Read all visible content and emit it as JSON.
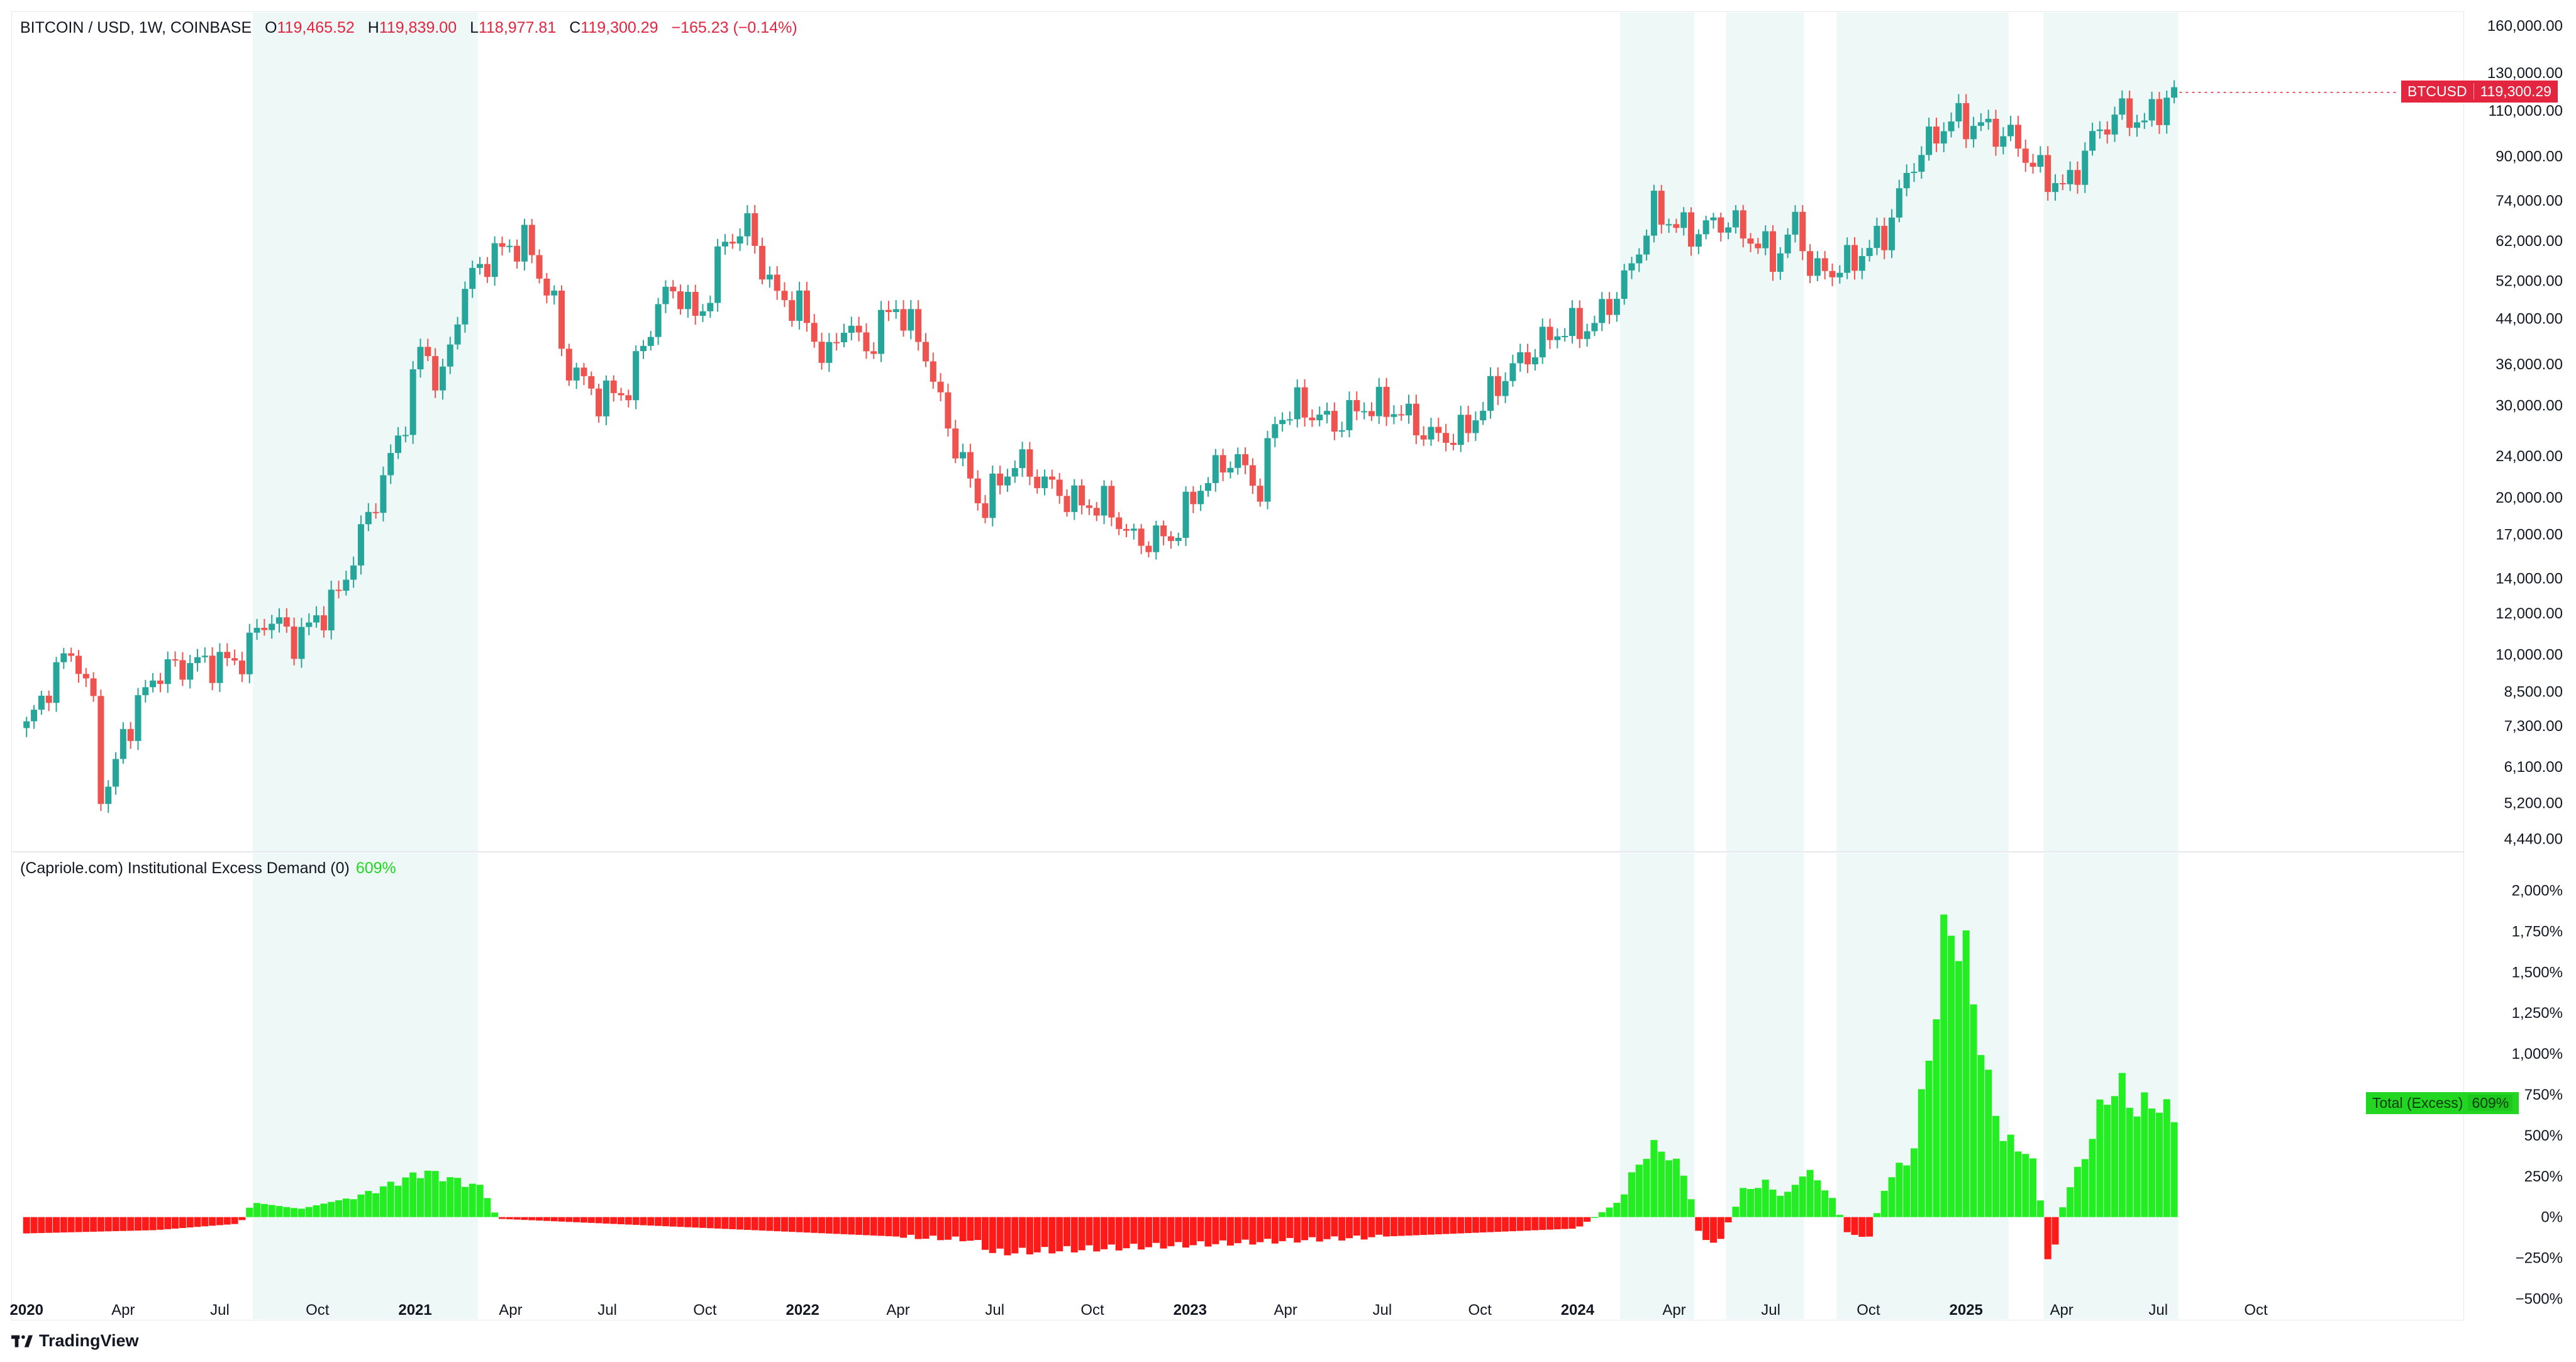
{
  "header": {
    "symbol": "BITCOIN / USD, 1W, COINBASE",
    "o_label": "O",
    "o_value": "119,465.52",
    "h_label": "H",
    "h_value": "119,839.00",
    "l_label": "L",
    "l_value": "118,977.81",
    "c_label": "C",
    "c_value": "119,300.29",
    "change": "−165.23 (−0.14%)"
  },
  "price_tag": {
    "symbol": "BTCUSD",
    "value": "119,300.29",
    "color": "#e3253f"
  },
  "indicator": {
    "title": "(Capriole.com) Institutional Excess Demand (0)",
    "value": "609%",
    "tag_label": "Total (Excess)",
    "tag_value": "609%"
  },
  "footer": {
    "brand": "TradingView",
    "logo_icon": "tradingview-logo-icon"
  },
  "colors": {
    "up": "#26a69a",
    "down": "#ef5350",
    "bar_up": "#22ee22",
    "bar_down": "#ff1a1a",
    "shade": "#eef8f6"
  },
  "chart_data": [
    {
      "type": "candlestick",
      "title": "BITCOIN / USD, 1W, COINBASE",
      "y_scale": "log",
      "y_ticks": [
        "160,000.00",
        "130,000.00",
        "110,000.00",
        "90,000.00",
        "74,000.00",
        "62,000.00",
        "52,000.00",
        "44,000.00",
        "36,000.00",
        "30,000.00",
        "24,000.00",
        "20,000.00",
        "17,000.00",
        "14,000.00",
        "12,000.00",
        "10,000.00",
        "8,500.00",
        "7,300.00",
        "6,100.00",
        "5,200.00",
        "4,440.00"
      ],
      "y_tick_values": [
        160000,
        130000,
        110000,
        90000,
        74000,
        62000,
        52000,
        44000,
        36000,
        30000,
        24000,
        20000,
        17000,
        14000,
        12000,
        10000,
        8500,
        7300,
        6100,
        5200,
        4440
      ],
      "x_ticks": [
        "2020",
        "Apr",
        "Jul",
        "Oct",
        "2021",
        "Apr",
        "Jul",
        "Oct",
        "2022",
        "Apr",
        "Jul",
        "Oct",
        "2023",
        "Apr",
        "Jul",
        "Oct",
        "2024",
        "Apr",
        "Jul",
        "Oct",
        "2025",
        "Apr",
        "Jul",
        "Oct"
      ],
      "x_tick_dates": [
        "2020-01",
        "2020-04",
        "2020-07",
        "2020-10",
        "2021-01",
        "2021-04",
        "2021-07",
        "2021-10",
        "2022-01",
        "2022-04",
        "2022-07",
        "2022-10",
        "2023-01",
        "2023-04",
        "2023-07",
        "2023-10",
        "2024-01",
        "2024-04",
        "2024-07",
        "2024-10",
        "2025-01",
        "2025-04",
        "2025-07",
        "2025-10"
      ],
      "shaded_periods": [
        [
          "2020-08-01",
          "2021-03-01"
        ],
        [
          "2024-02-10",
          "2024-04-20"
        ],
        [
          "2024-05-20",
          "2024-08-01"
        ],
        [
          "2024-09-01",
          "2025-02-10"
        ],
        [
          "2025-03-15",
          "2025-07-20"
        ]
      ],
      "close_series": {
        "dates": [
          "2020-01-01",
          "2020-01-20",
          "2020-02-12",
          "2020-03-05",
          "2020-03-13",
          "2020-04-01",
          "2020-05-01",
          "2020-06-01",
          "2020-07-20",
          "2020-08-15",
          "2020-09-10",
          "2020-10-20",
          "2020-11-20",
          "2020-12-20",
          "2021-01-08",
          "2021-01-25",
          "2021-02-15",
          "2021-03-12",
          "2021-04-14",
          "2021-05-12",
          "2021-05-20",
          "2021-06-22",
          "2021-07-20",
          "2021-08-20",
          "2021-09-07",
          "2021-09-25",
          "2021-10-20",
          "2021-11-10",
          "2021-12-05",
          "2021-12-30",
          "2022-01-24",
          "2022-02-10",
          "2022-03-01",
          "2022-03-28",
          "2022-04-25",
          "2022-05-12",
          "2022-06-18",
          "2022-07-20",
          "2022-08-15",
          "2022-09-15",
          "2022-10-15",
          "2022-11-09",
          "2022-12-15",
          "2023-01-10",
          "2023-02-10",
          "2023-03-10",
          "2023-03-20",
          "2023-04-14",
          "2023-05-15",
          "2023-06-15",
          "2023-07-14",
          "2023-08-17",
          "2023-09-15",
          "2023-10-23",
          "2023-11-15",
          "2023-12-15",
          "2024-01-15",
          "2024-02-15",
          "2024-03-13",
          "2024-04-15",
          "2024-05-20",
          "2024-06-20",
          "2024-07-05",
          "2024-07-28",
          "2024-08-05",
          "2024-09-06",
          "2024-10-15",
          "2024-11-12",
          "2024-12-17",
          "2025-01-20",
          "2025-02-15",
          "2025-03-10",
          "2025-04-07",
          "2025-04-25",
          "2025-05-22",
          "2025-06-20",
          "2025-07-14",
          "2025-07-21"
        ],
        "values": [
          7200,
          8600,
          10300,
          7900,
          5000,
          7000,
          9200,
          9600,
          9700,
          11900,
          10600,
          12900,
          18800,
          27000,
          40000,
          32000,
          50000,
          58000,
          62000,
          47000,
          37000,
          31000,
          32000,
          48000,
          50000,
          43000,
          62000,
          66000,
          49000,
          46000,
          36000,
          44000,
          38000,
          47000,
          39000,
          29500,
          19000,
          23500,
          21500,
          19500,
          19300,
          16500,
          16800,
          21000,
          24000,
          20500,
          28000,
          30000,
          27500,
          30000,
          29500,
          26000,
          26500,
          34000,
          37500,
          42000,
          42500,
          52000,
          71000,
          64000,
          68000,
          61000,
          57000,
          69000,
          54000,
          55000,
          63000,
          88000,
          106000,
          102000,
          97000,
          84000,
          78000,
          94000,
          109000,
          105000,
          119000,
          119300
        ]
      }
    },
    {
      "type": "bar",
      "title": "(Capriole.com) Institutional Excess Demand (0)",
      "y_ticks": [
        "2,000%",
        "1,750%",
        "1,500%",
        "1,250%",
        "1,000%",
        "750%",
        "500%",
        "250%",
        "0%",
        "−250%",
        "−500%"
      ],
      "y_tick_values": [
        2000,
        1750,
        1500,
        1250,
        1000,
        750,
        500,
        250,
        0,
        -250,
        -500
      ],
      "series": {
        "dates": [
          "2020-01-01",
          "2020-05-01",
          "2020-07-20",
          "2020-08-01",
          "2020-09-15",
          "2020-11-15",
          "2021-01-10",
          "2021-03-05",
          "2021-03-20",
          "2022-06-10",
          "2022-07-01",
          "2023-12-31",
          "2024-02-10",
          "2024-02-25",
          "2024-03-10",
          "2024-03-25",
          "2024-04-10",
          "2024-04-20",
          "2024-04-25",
          "2024-05-10",
          "2024-05-20",
          "2024-06-05",
          "2024-06-25",
          "2024-07-15",
          "2024-08-01",
          "2024-08-15",
          "2024-08-30",
          "2024-09-10",
          "2024-10-01",
          "2024-10-20",
          "2024-11-10",
          "2024-11-20",
          "2024-12-05",
          "2024-12-15",
          "2025-01-05",
          "2025-01-20",
          "2025-02-05",
          "2025-02-15",
          "2025-03-01",
          "2025-03-10",
          "2025-03-20",
          "2025-04-05",
          "2025-04-20",
          "2025-05-10",
          "2025-05-25",
          "2025-06-10",
          "2025-06-25",
          "2025-07-10",
          "2025-07-20"
        ],
        "values": [
          -100,
          -80,
          -40,
          90,
          50,
          140,
          280,
          180,
          -10,
          -140,
          -220,
          -70,
          100,
          300,
          430,
          400,
          260,
          60,
          -120,
          -180,
          -60,
          160,
          210,
          120,
          280,
          230,
          100,
          -90,
          -140,
          250,
          350,
          700,
          1350,
          1860,
          1500,
          850,
          500,
          430,
          410,
          210,
          -330,
          150,
          320,
          700,
          820,
          650,
          710,
          640,
          609
        ]
      }
    }
  ]
}
